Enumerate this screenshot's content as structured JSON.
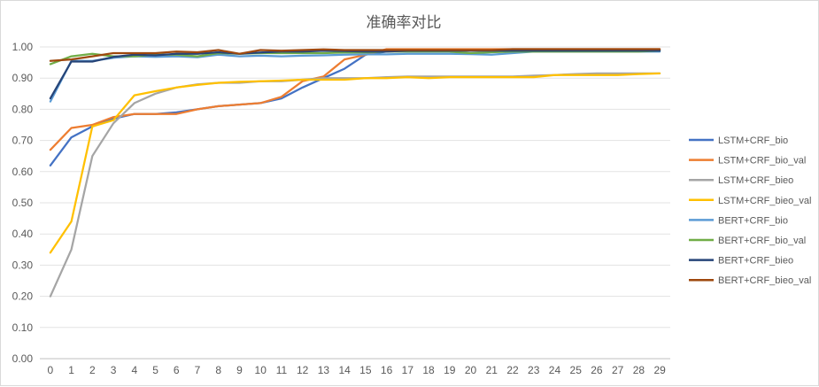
{
  "chart_data": {
    "type": "line",
    "title": "准确率对比",
    "xlabel": "",
    "ylabel": "",
    "categories": [
      0,
      1,
      2,
      3,
      4,
      5,
      6,
      7,
      8,
      9,
      10,
      11,
      12,
      13,
      14,
      15,
      16,
      17,
      18,
      19,
      20,
      21,
      22,
      23,
      24,
      25,
      26,
      27,
      28,
      29
    ],
    "ylim": [
      0,
      1.0
    ],
    "y_ticks": [
      "0.00",
      "0.10",
      "0.20",
      "0.30",
      "0.40",
      "0.50",
      "0.60",
      "0.70",
      "0.80",
      "0.90",
      "1.00"
    ],
    "grid": "horizontal",
    "legend_position": "right",
    "series": [
      {
        "name": "LSTM+CRF_bio",
        "color": "#4472C4",
        "values": [
          0.62,
          0.71,
          0.745,
          0.77,
          0.785,
          0.785,
          0.79,
          0.8,
          0.81,
          0.815,
          0.82,
          0.835,
          0.87,
          0.9,
          0.93,
          0.975,
          0.985,
          0.988,
          0.99,
          0.99,
          0.99,
          0.99,
          0.99,
          0.99,
          0.99,
          0.99,
          0.99,
          0.99,
          0.99,
          0.99
        ]
      },
      {
        "name": "LSTM+CRF_bio_val",
        "color": "#ED7D31",
        "values": [
          0.67,
          0.74,
          0.75,
          0.775,
          0.785,
          0.785,
          0.785,
          0.8,
          0.81,
          0.815,
          0.82,
          0.84,
          0.89,
          0.905,
          0.96,
          0.975,
          0.993,
          0.993,
          0.993,
          0.993,
          0.993,
          0.993,
          0.993,
          0.993,
          0.993,
          0.993,
          0.993,
          0.993,
          0.993,
          0.993
        ]
      },
      {
        "name": "LSTM+CRF_bieo",
        "color": "#A5A5A5",
        "values": [
          0.2,
          0.35,
          0.65,
          0.755,
          0.82,
          0.85,
          0.87,
          0.88,
          0.885,
          0.885,
          0.89,
          0.89,
          0.895,
          0.9,
          0.9,
          0.9,
          0.903,
          0.905,
          0.905,
          0.905,
          0.905,
          0.905,
          0.905,
          0.908,
          0.91,
          0.913,
          0.915,
          0.915,
          0.915,
          0.915
        ]
      },
      {
        "name": "LSTM+CRF_bieo_val",
        "color": "#FFC000",
        "values": [
          0.34,
          0.44,
          0.745,
          0.765,
          0.845,
          0.858,
          0.87,
          0.878,
          0.885,
          0.888,
          0.89,
          0.892,
          0.895,
          0.895,
          0.895,
          0.9,
          0.9,
          0.903,
          0.9,
          0.903,
          0.903,
          0.903,
          0.903,
          0.903,
          0.91,
          0.91,
          0.91,
          0.91,
          0.913,
          0.915
        ]
      },
      {
        "name": "BERT+CRF_bio",
        "color": "#5B9BD5",
        "values": [
          0.825,
          0.955,
          0.955,
          0.965,
          0.97,
          0.968,
          0.97,
          0.967,
          0.975,
          0.97,
          0.972,
          0.97,
          0.972,
          0.973,
          0.975,
          0.976,
          0.976,
          0.978,
          0.978,
          0.978,
          0.977,
          0.975,
          0.98,
          0.985,
          0.985,
          0.985,
          0.985,
          0.985,
          0.985,
          0.985
        ]
      },
      {
        "name": "BERT+CRF_bio_val",
        "color": "#70AD47",
        "values": [
          0.945,
          0.97,
          0.978,
          0.97,
          0.97,
          0.975,
          0.975,
          0.97,
          0.98,
          0.978,
          0.98,
          0.98,
          0.98,
          0.98,
          0.982,
          0.982,
          0.985,
          0.985,
          0.985,
          0.985,
          0.98,
          0.983,
          0.985,
          0.985,
          0.985,
          0.985,
          0.985,
          0.985,
          0.985,
          0.988
        ]
      },
      {
        "name": "BERT+CRF_bieo",
        "color": "#264478",
        "values": [
          0.835,
          0.953,
          0.953,
          0.968,
          0.975,
          0.973,
          0.978,
          0.978,
          0.983,
          0.978,
          0.982,
          0.985,
          0.985,
          0.988,
          0.987,
          0.985,
          0.985,
          0.988,
          0.988,
          0.988,
          0.988,
          0.988,
          0.988,
          0.988,
          0.988,
          0.988,
          0.988,
          0.988,
          0.988,
          0.988
        ]
      },
      {
        "name": "BERT+CRF_bieo_val",
        "color": "#9E480E",
        "values": [
          0.955,
          0.96,
          0.97,
          0.98,
          0.98,
          0.98,
          0.985,
          0.983,
          0.99,
          0.978,
          0.99,
          0.988,
          0.99,
          0.992,
          0.99,
          0.99,
          0.99,
          0.99,
          0.99,
          0.99,
          0.99,
          0.99,
          0.993,
          0.993,
          0.993,
          0.993,
          0.993,
          0.993,
          0.993,
          0.993
        ]
      }
    ]
  }
}
